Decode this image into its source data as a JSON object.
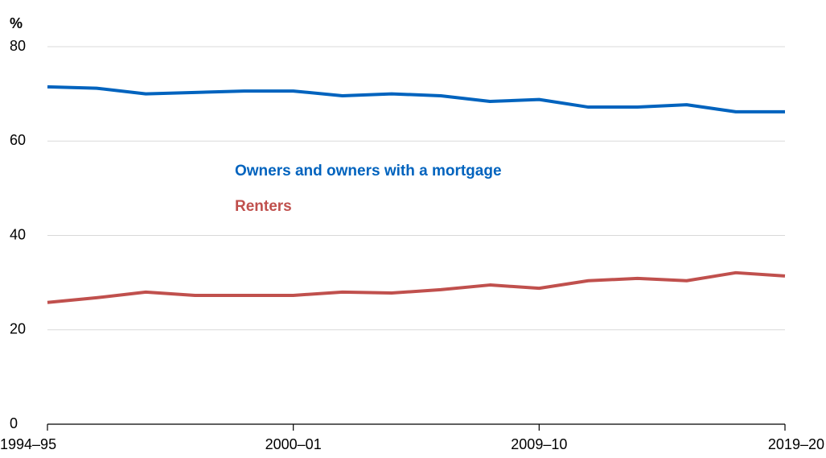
{
  "chart_data": {
    "type": "line",
    "y_label": "%",
    "categories": [
      "1994–95",
      null,
      null,
      null,
      null,
      "2000–01",
      null,
      null,
      null,
      null,
      "2009–10",
      null,
      null,
      null,
      null,
      "2019–20"
    ],
    "series": [
      {
        "name": "Owners and owners with a mortgage",
        "color": "#0063be",
        "values": [
          71.5,
          71.2,
          70.0,
          70.3,
          70.6,
          70.6,
          69.6,
          70.0,
          69.6,
          68.4,
          68.8,
          67.2,
          67.2,
          67.7,
          66.2,
          66.2
        ]
      },
      {
        "name": "Renters",
        "color": "#c0504d",
        "values": [
          25.8,
          26.8,
          28.0,
          27.3,
          27.3,
          27.3,
          28.0,
          27.8,
          28.5,
          29.5,
          28.8,
          30.4,
          30.9,
          30.4,
          32.1,
          31.4
        ]
      }
    ],
    "ylim": [
      0,
      80
    ],
    "yticks": [
      0,
      20,
      40,
      60,
      80
    ],
    "grid": true,
    "legend": "inline"
  }
}
